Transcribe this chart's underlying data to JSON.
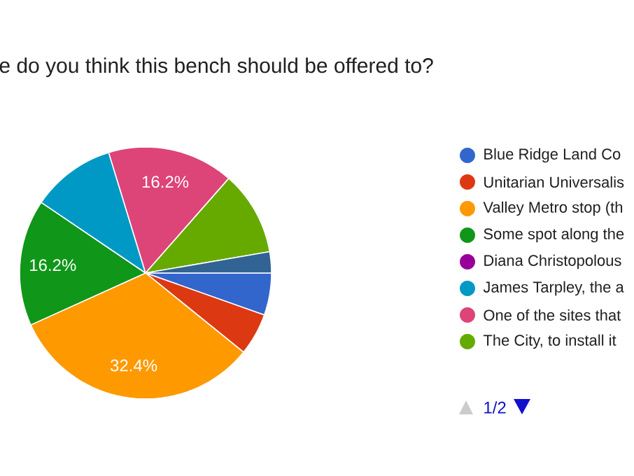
{
  "chart_data": {
    "type": "pie",
    "title": "e do you think this bench should be offered to?",
    "categories": [
      "Blue Ridge Land Co",
      "Unitarian Universalis",
      "Valley Metro stop (th",
      "Some spot along the",
      "Diana Christopolous",
      "James Tarpley, the a",
      "One of the sites that",
      "The City, to install it",
      null
    ],
    "values": [
      5.4,
      5.4,
      32.4,
      16.2,
      0,
      10.8,
      16.2,
      10.8,
      2.7
    ],
    "colors": [
      "#3366cc",
      "#dc3912",
      "#ff9900",
      "#109618",
      "#990099",
      "#0099c6",
      "#dd4477",
      "#66aa00",
      "#316395"
    ],
    "value_labels": [
      null,
      null,
      "32.4%",
      "16.2%",
      null,
      null,
      "16.2%",
      null,
      null
    ],
    "legend": "right",
    "annotations": [
      "1/2"
    ]
  }
}
